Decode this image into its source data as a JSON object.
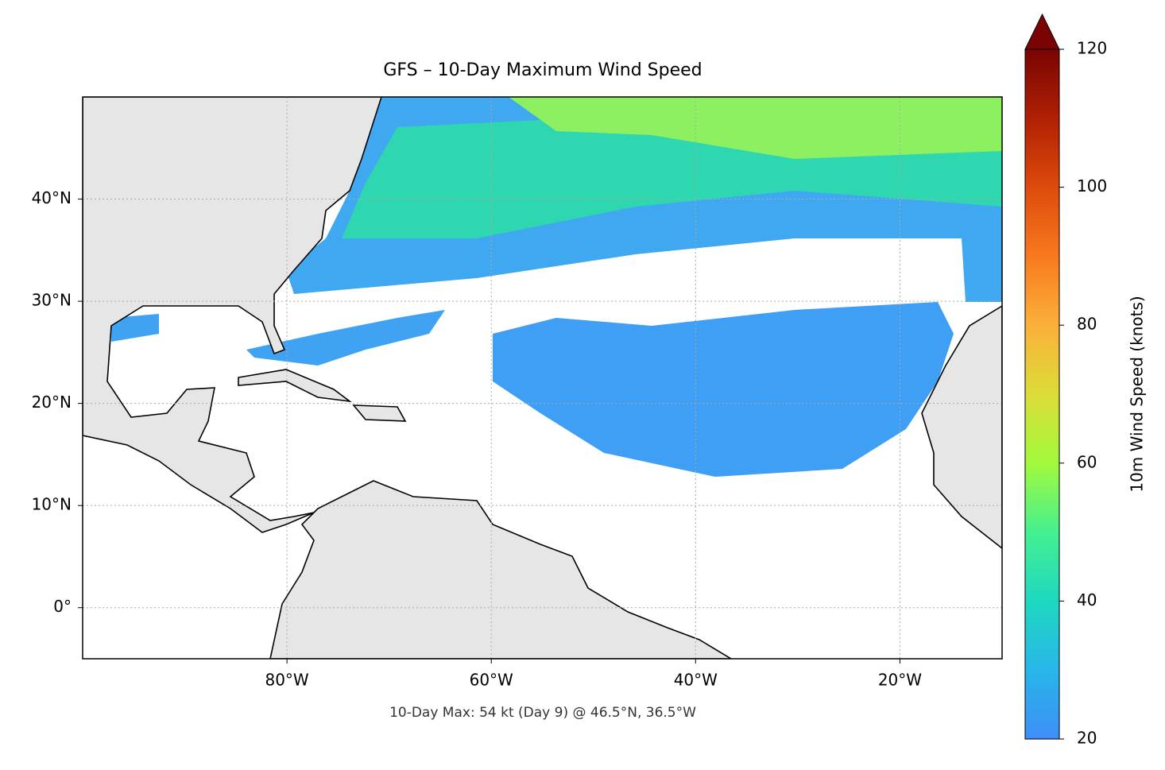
{
  "chart_data": {
    "type": "map",
    "title": "GFS – 10-Day Maximum Wind Speed",
    "annotation": "10-Day Max: 54 kt (Day 9) @ 46.5°N, 36.5°W",
    "xlim": [
      -100,
      -10
    ],
    "ylim": [
      -5,
      50
    ],
    "xticks": [
      {
        "value": -80,
        "label": "80°W"
      },
      {
        "value": -60,
        "label": "60°W"
      },
      {
        "value": -40,
        "label": "40°W"
      },
      {
        "value": -20,
        "label": "20°W"
      }
    ],
    "yticks": [
      {
        "value": 0,
        "label": "0°"
      },
      {
        "value": 10,
        "label": "10°N"
      },
      {
        "value": 20,
        "label": "20°N"
      },
      {
        "value": 30,
        "label": "30°N"
      },
      {
        "value": 40,
        "label": "40°N"
      }
    ],
    "grid": true,
    "colorbar": {
      "label": "10m Wind Speed (knots)",
      "clim": [
        20,
        120
      ],
      "ticks": [
        20,
        40,
        60,
        80,
        100,
        120
      ],
      "colormap": "turbo",
      "extend": "max"
    }
  }
}
